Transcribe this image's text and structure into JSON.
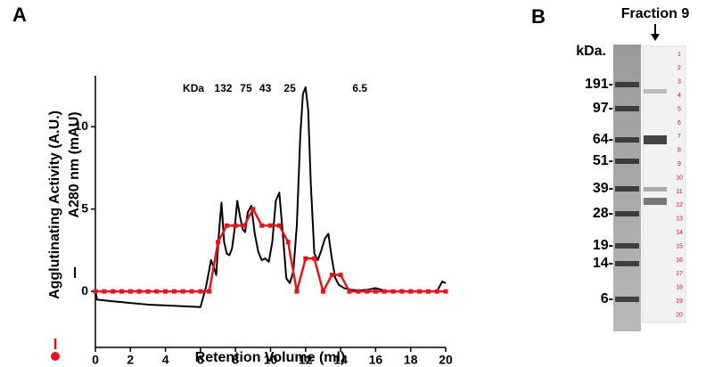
{
  "chart_data": {
    "type": "line",
    "panel_label": "A",
    "x_label": "Retention Volume (ml)",
    "xlim": [
      0,
      20
    ],
    "xticks": [
      0,
      2,
      4,
      6,
      8,
      10,
      12,
      14,
      16,
      18,
      20
    ],
    "ylim": [
      -3.4,
      13.1
    ],
    "yticks": [
      0,
      5,
      10
    ],
    "series": [
      {
        "name": "A280 nm (mAU)",
        "color": "#000000",
        "x": [
          0,
          0.1,
          1,
          2,
          3,
          4,
          5,
          6,
          6.3,
          6.5,
          6.6,
          6.75,
          6.9,
          7.05,
          7.2,
          7.35,
          7.5,
          7.65,
          7.8,
          7.95,
          8.1,
          8.25,
          8.4,
          8.55,
          8.7,
          8.9,
          9.1,
          9.3,
          9.5,
          9.7,
          9.9,
          10.1,
          10.3,
          10.5,
          10.7,
          10.9,
          11.1,
          11.3,
          11.5,
          11.7,
          11.85,
          12.0,
          12.15,
          12.3,
          12.5,
          12.7,
          12.9,
          13.1,
          13.3,
          13.5,
          13.7,
          13.9,
          14.2,
          14.6,
          15,
          15.5,
          16,
          16.5,
          17,
          18,
          19,
          19.5,
          19.8,
          20
        ],
        "values": [
          0,
          -0.5,
          -0.6,
          -0.7,
          -0.8,
          -0.85,
          -0.9,
          -0.95,
          0.2,
          1.3,
          1.9,
          1.5,
          1.0,
          3.5,
          5.4,
          3.0,
          2.3,
          2.2,
          2.6,
          3.8,
          5.5,
          4.6,
          3.8,
          3.6,
          4.8,
          5.2,
          3.5,
          2.4,
          1.9,
          2.0,
          1.8,
          3.0,
          5.5,
          6.0,
          3.5,
          0.8,
          0.5,
          1.2,
          4.0,
          9.5,
          12.0,
          12.4,
          11.0,
          6.5,
          2.3,
          1.9,
          2.5,
          3.2,
          3.5,
          2.0,
          0.8,
          0.4,
          0.2,
          0.1,
          0.05,
          0.1,
          0.2,
          0.05,
          0,
          0,
          0,
          0,
          0.6,
          0.5
        ]
      },
      {
        "name": "Agglutinating Activity (A.U.)",
        "color": "#e8141b",
        "marker": "square",
        "x": [
          0,
          0.5,
          1,
          1.5,
          2,
          2.5,
          3,
          3.5,
          4,
          4.5,
          5,
          5.5,
          6,
          6.5,
          7,
          7.5,
          8,
          8.5,
          9,
          9.5,
          10,
          10.5,
          11,
          11.5,
          12,
          12.5,
          13,
          13.5,
          14,
          14.5,
          15,
          15.5,
          16,
          16.5,
          17,
          17.5,
          18,
          18.5,
          19,
          19.5,
          20
        ],
        "values": [
          0,
          0,
          0,
          0,
          0,
          0,
          0,
          0,
          0,
          0,
          0,
          0,
          0,
          0,
          3,
          4,
          4,
          4,
          5,
          4,
          4,
          4,
          3,
          0,
          2,
          2,
          0,
          1,
          1,
          0,
          0,
          0,
          0,
          0,
          0,
          0,
          0,
          0,
          0,
          0,
          0
        ]
      }
    ],
    "annotations": [
      {
        "text": "KDa",
        "x": 5.6,
        "y": 12.3
      },
      {
        "text": "132",
        "x": 7.3,
        "y": 12.3
      },
      {
        "text": "75",
        "x": 8.6,
        "y": 12.3
      },
      {
        "text": "43",
        "x": 9.7,
        "y": 12.3
      },
      {
        "text": "25",
        "x": 11.1,
        "y": 12.3
      },
      {
        "text": "6.5",
        "x": 15.1,
        "y": 12.3
      }
    ]
  },
  "gel": {
    "panel_label": "B",
    "title": "Fraction 9",
    "unit_label": "kDa.",
    "markers": [
      "191-",
      "97-",
      "64-",
      "51-",
      "39-",
      "28-",
      "19-",
      "14-",
      "6-"
    ],
    "lanes": [
      "1",
      "2",
      "3",
      "4",
      "5",
      "6",
      "7",
      "8",
      "9",
      "10",
      "11",
      "12",
      "13",
      "14",
      "15",
      "16",
      "17",
      "18",
      "19",
      "20"
    ]
  }
}
